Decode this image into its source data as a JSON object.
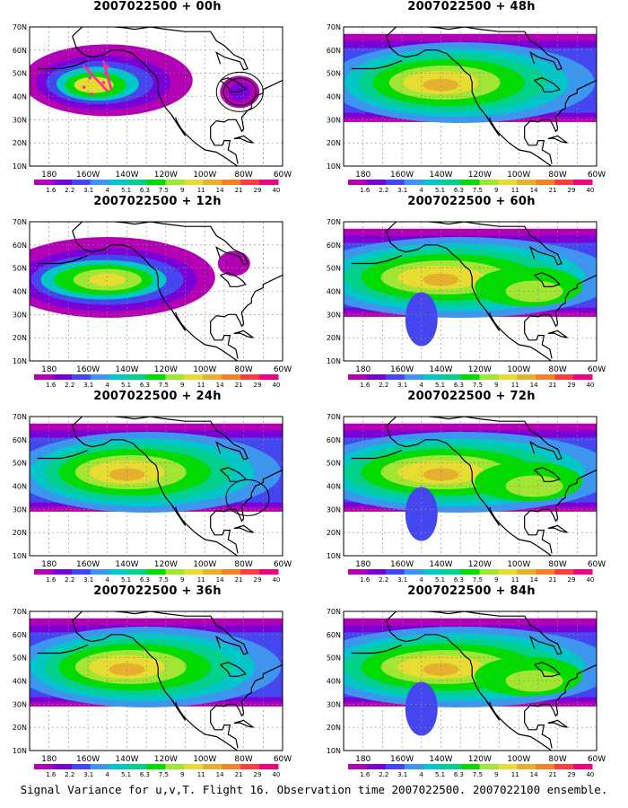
{
  "caption": "Signal Variance for u,v,T. Flight 16. Observation time 2007022500. 2007022100 ensemble.",
  "lat_labels": [
    "70N",
    "60N",
    "50N",
    "40N",
    "30N",
    "20N",
    "10N"
  ],
  "lon_labels": [
    "180",
    "160W",
    "140W",
    "120W",
    "100W",
    "80W",
    "60W"
  ],
  "colorbar": {
    "labels": [
      "1.6",
      "2.2",
      "3.1",
      "4",
      "5.1",
      "6.3",
      "7.5",
      "9",
      "11",
      "14",
      "21",
      "29",
      "40"
    ],
    "colors": [
      "#b400b4",
      "#7a00d8",
      "#4646f0",
      "#3c96f0",
      "#00c8c8",
      "#00d28c",
      "#00dc00",
      "#a0e632",
      "#e6dc32",
      "#e6af2d",
      "#f08228",
      "#fa3c3c",
      "#f00082"
    ]
  },
  "panels": [
    {
      "id": "p00",
      "title": "2007022500 + 00h",
      "level": 0
    },
    {
      "id": "p48",
      "title": "2007022500 + 48h",
      "level": 2
    },
    {
      "id": "p12",
      "title": "2007022500 + 12h",
      "level": 1
    },
    {
      "id": "p60",
      "title": "2007022500 + 60h",
      "level": 3
    },
    {
      "id": "p24",
      "title": "2007022500 + 24h",
      "level": 2
    },
    {
      "id": "p72",
      "title": "2007022500 + 72h",
      "level": 3
    },
    {
      "id": "p36",
      "title": "2007022500 + 36h",
      "level": 2
    },
    {
      "id": "p84",
      "title": "2007022500 + 84h",
      "level": 3
    }
  ]
}
